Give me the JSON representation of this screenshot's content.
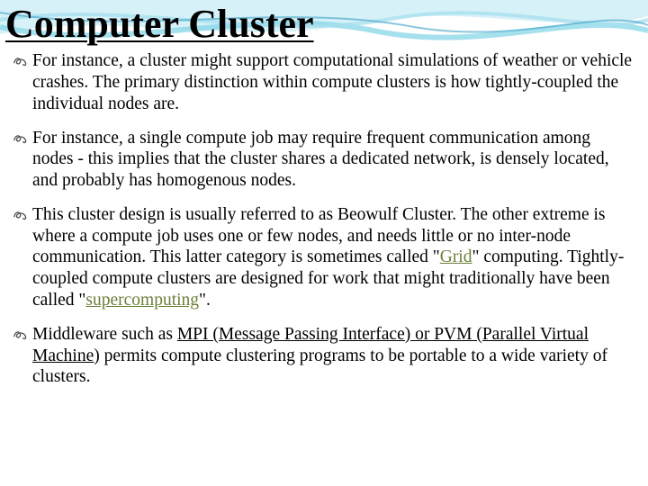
{
  "slide": {
    "title": "Computer  Cluster",
    "title_fontsize": 44,
    "title_color": "#000000",
    "title_underline": true,
    "background_color": "#ffffff",
    "wave_colors": [
      "#7fd3e6",
      "#a8e0ee",
      "#cdeef6",
      "#3ea0c4"
    ],
    "bullet_icon": {
      "name": "scribble-icon",
      "stroke": "#4a4a4a",
      "stroke_width": 1.4
    },
    "body_fontsize": 19.5,
    "body_color": "#000000",
    "link_color": "#6b7f3a",
    "bullets": [
      {
        "runs": [
          {
            "text": "For instance, a cluster might support computational simulations of weather or vehicle crashes. The primary distinction within compute clusters is how tightly-coupled the individual nodes are."
          }
        ]
      },
      {
        "runs": [
          {
            "text": "For instance, a single compute job may require frequent communication among nodes - this implies that the cluster shares a dedicated network, is densely located, and probably has homogenous nodes."
          }
        ]
      },
      {
        "runs": [
          {
            "text": "This cluster design is usually referred to as Beowulf Cluster. The other extreme is where a compute job uses one or few nodes, and needs little or no inter-node communication. This latter category is sometimes called \""
          },
          {
            "text": "Grid",
            "style": "link"
          },
          {
            "text": "\" computing. Tightly-coupled compute clusters are designed for work that might traditionally have been called \""
          },
          {
            "text": "supercomputing",
            "style": "link"
          },
          {
            "text": "\"."
          }
        ]
      },
      {
        "runs": [
          {
            "text": "Middleware such as "
          },
          {
            "text": "MPI (Message Passing Interface) or PVM (Parallel Virtual Machine)",
            "style": "underline"
          },
          {
            "text": " permits compute clustering programs to be portable to a wide variety of clusters."
          }
        ]
      }
    ]
  }
}
